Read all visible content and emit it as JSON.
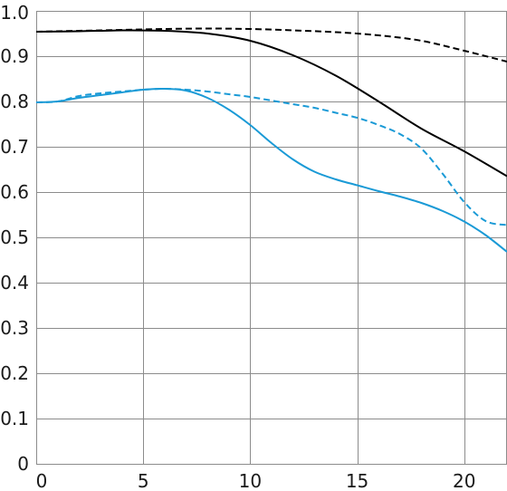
{
  "chart_data": {
    "type": "line",
    "xlim": [
      0,
      22
    ],
    "ylim": [
      0,
      1
    ],
    "x_ticks": [
      0,
      5,
      10,
      15,
      20
    ],
    "y_ticks": [
      0,
      0.1,
      0.2,
      0.3,
      0.4,
      0.5,
      0.6,
      0.7,
      0.8,
      0.9,
      1.0
    ],
    "x_tick_labels": [
      "0",
      "5",
      "10",
      "15",
      "20"
    ],
    "y_tick_labels": [
      "0",
      "0.1",
      "0.2",
      "0.3",
      "0.4",
      "0.5",
      "0.6",
      "0.7",
      "0.8",
      "0.9",
      "1.0"
    ],
    "grid": true,
    "series": [
      {
        "color": "#000000",
        "dash": "solid",
        "x": [
          0,
          2,
          4,
          6,
          8,
          10,
          12,
          14,
          16,
          18,
          20,
          22
        ],
        "y": [
          0.954,
          0.955,
          0.957,
          0.956,
          0.95,
          0.934,
          0.902,
          0.857,
          0.8,
          0.74,
          0.69,
          0.635
        ]
      },
      {
        "color": "#000000",
        "dash": "dashed",
        "x": [
          0,
          2,
          4,
          6,
          8,
          10,
          12,
          14,
          16,
          18,
          20,
          22
        ],
        "y": [
          0.954,
          0.956,
          0.958,
          0.96,
          0.961,
          0.96,
          0.957,
          0.953,
          0.946,
          0.934,
          0.912,
          0.888
        ]
      },
      {
        "color": "#1a9ad6",
        "dash": "solid",
        "x": [
          0,
          1,
          2,
          3,
          4,
          5,
          6,
          7,
          8,
          9,
          10,
          11,
          12,
          13,
          14,
          15,
          16,
          17,
          18,
          19,
          20,
          21,
          22
        ],
        "y": [
          0.798,
          0.8,
          0.808,
          0.814,
          0.82,
          0.826,
          0.828,
          0.824,
          0.808,
          0.782,
          0.748,
          0.708,
          0.672,
          0.645,
          0.628,
          0.615,
          0.602,
          0.59,
          0.576,
          0.558,
          0.535,
          0.505,
          0.468
        ]
      },
      {
        "color": "#1a9ad6",
        "dash": "dashed",
        "x": [
          0,
          1,
          2,
          3,
          4,
          5,
          6,
          7,
          8,
          9,
          10,
          11,
          12,
          13,
          14,
          15,
          16,
          17,
          18,
          19,
          20,
          21,
          22
        ],
        "y": [
          0.798,
          0.8,
          0.812,
          0.818,
          0.822,
          0.826,
          0.828,
          0.826,
          0.822,
          0.816,
          0.81,
          0.802,
          0.794,
          0.786,
          0.775,
          0.764,
          0.748,
          0.728,
          0.696,
          0.64,
          0.578,
          0.536,
          0.527
        ]
      }
    ]
  }
}
